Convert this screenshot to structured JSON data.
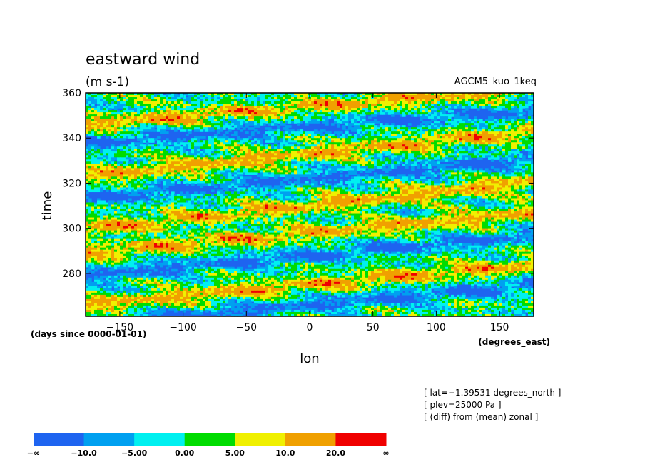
{
  "chart_data": {
    "type": "heatmap",
    "title": "eastward wind",
    "subtitle": "(m s-1)",
    "run_label": "AGCM5_kuo_1keq",
    "xlabel": "lon",
    "ylabel": "time",
    "x_units": "(degrees_east)",
    "y_units": "(days since 0000-01-01)",
    "xlim": [
      -177,
      177
    ],
    "ylim": [
      261,
      360
    ],
    "x_ticks": [
      -150,
      -100,
      -50,
      0,
      50,
      100,
      150
    ],
    "y_ticks": [
      280,
      300,
      320,
      340,
      360
    ],
    "x_tick_labels": [
      "−150",
      "−100",
      "−50",
      "0",
      "50",
      "100",
      "150"
    ],
    "y_tick_labels": [
      "280",
      "300",
      "320",
      "340",
      "360"
    ],
    "info_lines": [
      "[ lat=−1.39531 degrees_north ]",
      "[ plev=25000 Pa ]",
      "[ (diff) from (mean) zonal ]"
    ],
    "colorbar": {
      "levels": [
        "−∞",
        "−10.0",
        "−5.00",
        "0.00",
        "5.00",
        "10.0",
        "20.0",
        "∞"
      ],
      "colors": [
        "#1e64f0",
        "#00a0f0",
        "#00f0f0",
        "#00dc00",
        "#f0f000",
        "#f0a000",
        "#f00000"
      ]
    },
    "bands": [
      {
        "time_at_lon0": 354,
        "slope_days_per_deg": 0.045,
        "width_days": 3,
        "sign": 1
      },
      {
        "time_at_lon0": 345,
        "slope_days_per_deg": 0.04,
        "width_days": 3,
        "sign": -1
      },
      {
        "time_at_lon0": 333,
        "slope_days_per_deg": 0.055,
        "width_days": 3,
        "sign": 1
      },
      {
        "time_at_lon0": 322,
        "slope_days_per_deg": 0.05,
        "width_days": 3,
        "sign": -1
      },
      {
        "time_at_lon0": 310,
        "slope_days_per_deg": 0.06,
        "width_days": 3,
        "sign": 1
      },
      {
        "time_at_lon0": 298,
        "slope_days_per_deg": 0.05,
        "width_days": 3,
        "sign": 1
      },
      {
        "time_at_lon0": 288,
        "slope_days_per_deg": 0.05,
        "width_days": 3,
        "sign": -1
      },
      {
        "time_at_lon0": 275,
        "slope_days_per_deg": 0.05,
        "width_days": 3,
        "sign": 1
      },
      {
        "time_at_lon0": 266,
        "slope_days_per_deg": 0.05,
        "width_days": 3,
        "sign": -1
      }
    ]
  }
}
